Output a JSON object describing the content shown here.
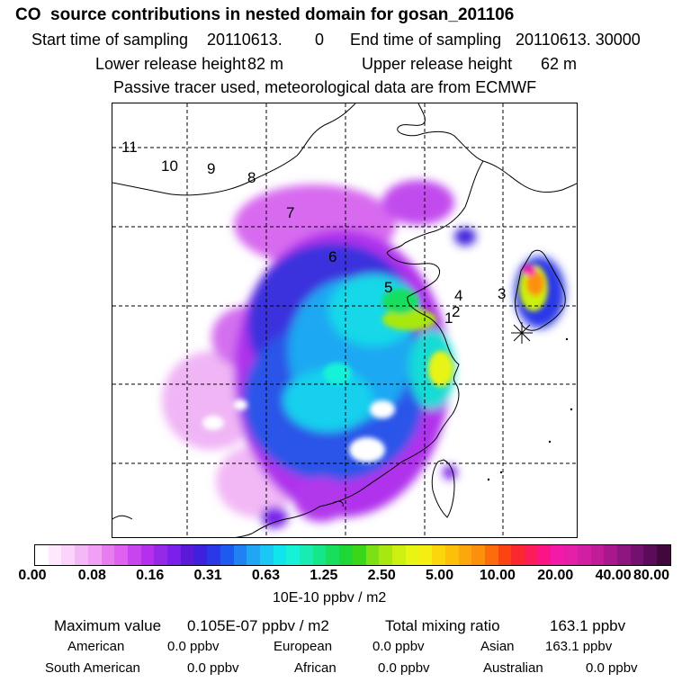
{
  "title": "CO  source contributions in nested domain for gosan_201106",
  "sampling": {
    "start_label": "Start time of sampling",
    "start_value": "20110613.",
    "start_hour": "0",
    "end_label": "End time of sampling",
    "end_value": "20110613. 30000"
  },
  "release": {
    "lower_label": "Lower release height",
    "lower_value": "82 m",
    "upper_label": "Upper release height",
    "upper_value": "62 m"
  },
  "tracer_note": "Passive tracer used, meteorological data are from ECMWF",
  "region_labels": [
    "11",
    "10",
    "9",
    "8",
    "7",
    "6",
    "5",
    "4",
    "3",
    "2",
    "1"
  ],
  "colorbar": {
    "ticks": [
      "0.00",
      "0.08",
      "0.16",
      "0.31",
      "0.63",
      "1.25",
      "2.50",
      "5.00",
      "10.00",
      "20.00",
      "40.00",
      "80.00"
    ],
    "unit": "10E-10 ppbv / m2",
    "colors": [
      "#ffffff",
      "#fde8fd",
      "#fbd3fb",
      "#f5b8f7",
      "#f2a0f6",
      "#e77df0",
      "#e060f0",
      "#c844ef",
      "#b42fee",
      "#9628e8",
      "#7a20ea",
      "#5a1ad8",
      "#3f20dc",
      "#2a39e8",
      "#1f5af0",
      "#2082f2",
      "#20a6f4",
      "#1bc8f4",
      "#10e4ec",
      "#16f2d8",
      "#18ecb2",
      "#14e68a",
      "#18de5e",
      "#1ed636",
      "#3ad61a",
      "#7ce014",
      "#a8e810",
      "#ccf010",
      "#e8f414",
      "#f6ee10",
      "#fbd60c",
      "#fcc00a",
      "#fca80c",
      "#fc900c",
      "#fc6c0c",
      "#fc4410",
      "#fc2830",
      "#fc1c5a",
      "#fa1486",
      "#f41aa8",
      "#e41ea6",
      "#d21ea2",
      "#c01c98",
      "#a8188c",
      "#8e1480",
      "#741070",
      "#5a0c5a",
      "#42083e"
    ]
  },
  "stats": {
    "max_label": "Maximum value",
    "max_value": "0.105E-07 ppbv / m2",
    "total_label": "Total mixing ratio",
    "total_value": "163.1 ppbv"
  },
  "contributions": [
    {
      "name": "American",
      "value": "0.0 ppbv"
    },
    {
      "name": "European",
      "value": "0.0 ppbv"
    },
    {
      "name": "Asian",
      "value": "163.1 ppbv"
    },
    {
      "name": "South American",
      "value": "0.0 ppbv"
    },
    {
      "name": "African",
      "value": "0.0 ppbv"
    },
    {
      "name": "Australian",
      "value": "0.0 ppbv"
    }
  ]
}
